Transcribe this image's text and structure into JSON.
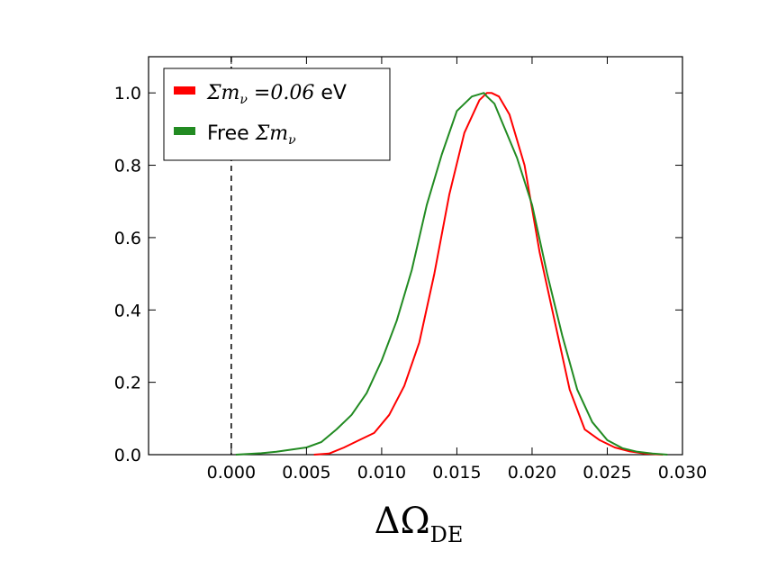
{
  "chart_data": {
    "type": "line",
    "title": "",
    "xlabel": "ΔΩ",
    "xlabel_subscript": "DE",
    "ylabel": "",
    "xlim": [
      -0.0055,
      0.03
    ],
    "ylim": [
      0,
      1.1
    ],
    "x_ticks": [
      0.0,
      0.005,
      0.01,
      0.015,
      0.02,
      0.025,
      0.03
    ],
    "x_tick_labels": [
      "0.000",
      "0.005",
      "0.010",
      "0.015",
      "0.020",
      "0.025",
      "0.030"
    ],
    "y_ticks": [
      0.0,
      0.2,
      0.4,
      0.6,
      0.8,
      1.0
    ],
    "y_tick_labels": [
      "0.0",
      "0.2",
      "0.4",
      "0.6",
      "0.8",
      "1.0"
    ],
    "legend_position": "top-left",
    "reference_line": {
      "x": 0.0,
      "style": "dashed",
      "color": "#000000"
    },
    "series": [
      {
        "name": "Σm_ν = 0.06 eV",
        "legend_math": "Σm",
        "legend_sub": "ν",
        "legend_rest": " =0.06 ",
        "legend_unit": "eV",
        "color": "#ff0000",
        "x": [
          0.0055,
          0.0065,
          0.0075,
          0.0085,
          0.0095,
          0.0105,
          0.0115,
          0.0125,
          0.0135,
          0.0145,
          0.0155,
          0.0165,
          0.017,
          0.0173,
          0.0178,
          0.0185,
          0.0195,
          0.0205,
          0.0215,
          0.0225,
          0.0235,
          0.0245,
          0.0255,
          0.0265,
          0.0275,
          0.0287
        ],
        "y": [
          0.0,
          0.003,
          0.02,
          0.04,
          0.06,
          0.11,
          0.19,
          0.31,
          0.5,
          0.72,
          0.89,
          0.98,
          1.0,
          1.0,
          0.99,
          0.94,
          0.8,
          0.56,
          0.37,
          0.18,
          0.07,
          0.04,
          0.02,
          0.009,
          0.003,
          0.0
        ]
      },
      {
        "name": "Free Σm_ν",
        "legend_prefix": "Free ",
        "legend_math": "Σm",
        "legend_sub": "ν",
        "color": "#228b22",
        "x": [
          0.0003,
          0.002,
          0.003,
          0.004,
          0.005,
          0.006,
          0.007,
          0.008,
          0.009,
          0.01,
          0.011,
          0.012,
          0.013,
          0.014,
          0.015,
          0.016,
          0.0168,
          0.017,
          0.0175,
          0.018,
          0.019,
          0.02,
          0.021,
          0.022,
          0.023,
          0.024,
          0.025,
          0.026,
          0.027,
          0.028,
          0.029
        ],
        "y": [
          0.0,
          0.004,
          0.008,
          0.014,
          0.02,
          0.035,
          0.07,
          0.11,
          0.17,
          0.26,
          0.37,
          0.51,
          0.69,
          0.83,
          0.95,
          0.99,
          1.0,
          0.99,
          0.97,
          0.92,
          0.82,
          0.69,
          0.5,
          0.33,
          0.18,
          0.09,
          0.04,
          0.018,
          0.008,
          0.003,
          0.0
        ]
      }
    ]
  }
}
